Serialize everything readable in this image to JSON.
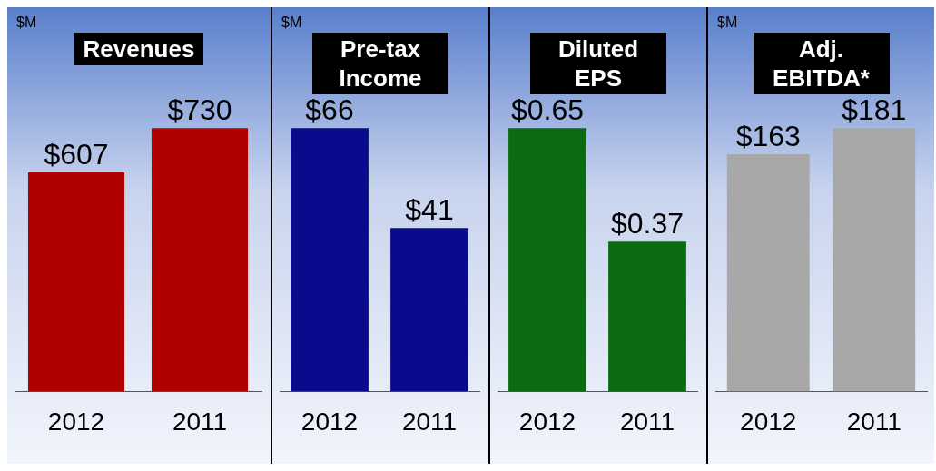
{
  "chart_data": [
    {
      "type": "bar",
      "title": "Revenues",
      "ylabel": "$M",
      "categories": [
        "2012",
        "2011"
      ],
      "values": [
        607,
        730
      ],
      "color": "#b00000",
      "value_labels": [
        "$607",
        "$730"
      ]
    },
    {
      "type": "bar",
      "title": "Pre-tax Income",
      "ylabel": "$M",
      "categories": [
        "2012",
        "2011"
      ],
      "values": [
        66,
        41
      ],
      "color": "#0a0a8c",
      "value_labels": [
        "$66",
        "$41"
      ]
    },
    {
      "type": "bar",
      "title": "Diluted EPS",
      "categories": [
        "2012",
        "2011"
      ],
      "values": [
        0.65,
        0.37
      ],
      "color": "#0b6a12",
      "value_labels": [
        "$0.65",
        "$0.37"
      ]
    },
    {
      "type": "bar",
      "title": "Adj. EBITDA*",
      "ylabel": "$M",
      "categories": [
        "2012",
        "2011"
      ],
      "values": [
        163,
        181
      ],
      "color": "#a8a8a8",
      "value_labels": [
        "$163",
        "$181"
      ]
    }
  ]
}
